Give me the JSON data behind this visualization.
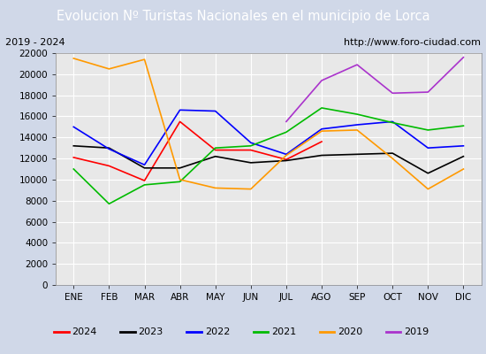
{
  "title": "Evolucion Nº Turistas Nacionales en el municipio de Lorca",
  "subtitle_left": "2019 - 2024",
  "subtitle_right": "http://www.foro-ciudad.com",
  "months": [
    "ENE",
    "FEB",
    "MAR",
    "ABR",
    "MAY",
    "JUN",
    "JUL",
    "AGO",
    "SEP",
    "OCT",
    "NOV",
    "DIC"
  ],
  "ylim": [
    0,
    22000
  ],
  "yticks": [
    0,
    2000,
    4000,
    6000,
    8000,
    10000,
    12000,
    14000,
    16000,
    18000,
    20000,
    22000
  ],
  "series": {
    "2024": {
      "color": "#ff0000",
      "values": [
        12100,
        11300,
        9900,
        15500,
        12800,
        12800,
        11900,
        13600,
        null,
        null,
        null,
        null
      ]
    },
    "2023": {
      "color": "#000000",
      "values": [
        13200,
        13000,
        11100,
        11100,
        12200,
        11600,
        11800,
        12300,
        12400,
        12500,
        10600,
        12200
      ]
    },
    "2022": {
      "color": "#0000ff",
      "values": [
        15000,
        12900,
        11400,
        16600,
        16500,
        13500,
        12400,
        14800,
        15200,
        15500,
        13000,
        13200
      ]
    },
    "2021": {
      "color": "#00bb00",
      "values": [
        11000,
        7700,
        9500,
        9800,
        13000,
        13200,
        14500,
        16800,
        16200,
        15400,
        14700,
        15100
      ]
    },
    "2020": {
      "color": "#ff9900",
      "values": [
        21500,
        20500,
        21400,
        10000,
        9200,
        9100,
        12300,
        14600,
        14700,
        12000,
        9100,
        11000
      ]
    },
    "2019": {
      "color": "#aa33cc",
      "values": [
        null,
        null,
        null,
        null,
        null,
        null,
        15500,
        19400,
        20900,
        18200,
        18300,
        21600
      ]
    }
  },
  "title_bg_color": "#4a7fcb",
  "title_text_color": "#ffffff",
  "plot_bg_color": "#e8e8e8",
  "subtitle_box_color": "#f0f0f0",
  "grid_color": "#ffffff",
  "fig_bg_color": "#d0d8e8"
}
